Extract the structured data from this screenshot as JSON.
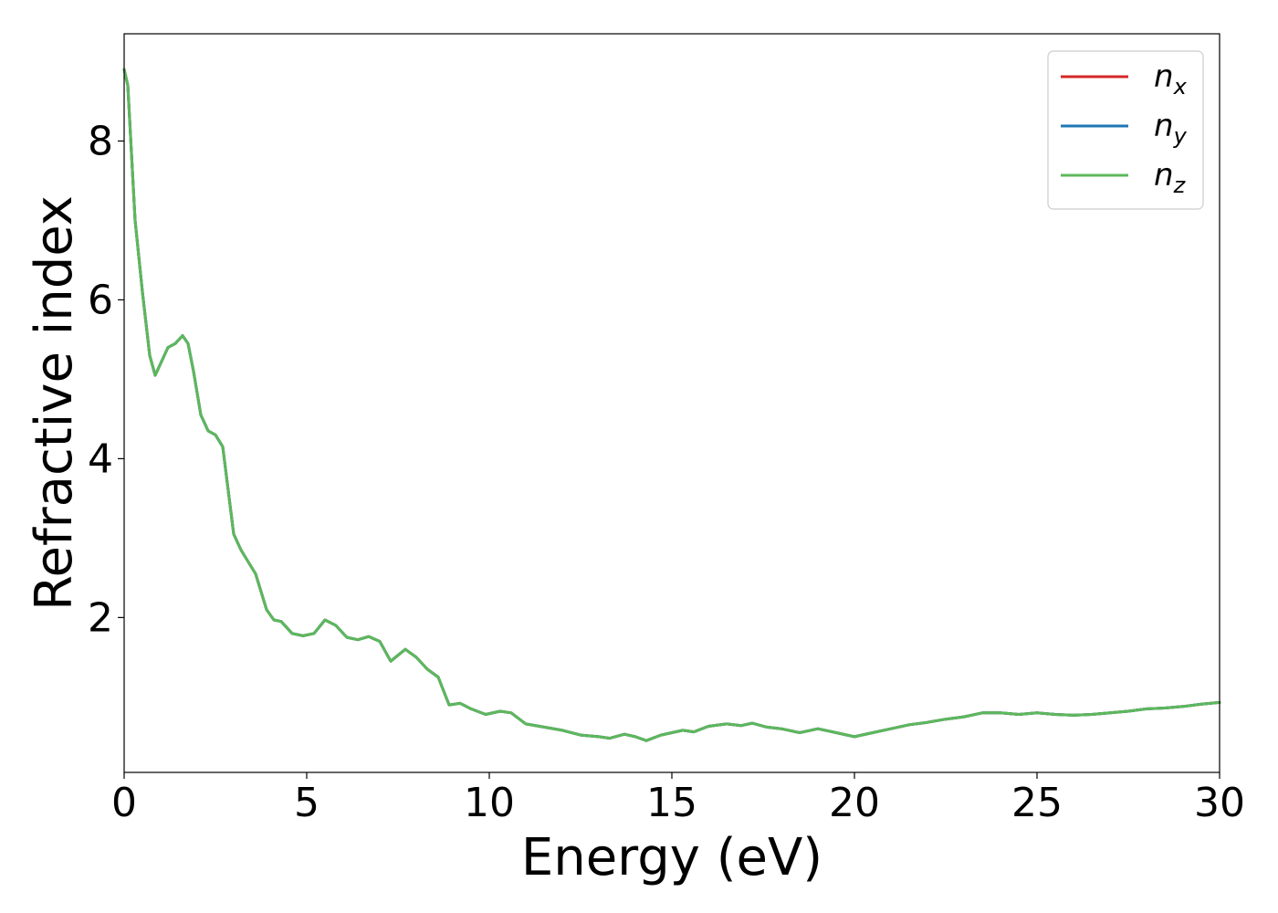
{
  "chart_data": {
    "type": "line",
    "title": "",
    "xlabel": "Energy (eV)",
    "ylabel": "Refractive index",
    "xlim": [
      0,
      30
    ],
    "ylim": [
      0.05,
      9.35
    ],
    "xticks": [
      0,
      5,
      10,
      15,
      20,
      25,
      30
    ],
    "yticks": [
      2,
      4,
      6,
      8
    ],
    "grid": false,
    "legend_position": "top-right",
    "series": [
      {
        "name": "n_x",
        "legend_base": "n",
        "legend_sub": "x",
        "color": "#d62728",
        "x": [
          0,
          0.1,
          0.3,
          0.5,
          0.7,
          0.85,
          1.0,
          1.2,
          1.4,
          1.6,
          1.75,
          1.9,
          2.1,
          2.3,
          2.5,
          2.7,
          2.85,
          3.0,
          3.2,
          3.4,
          3.6,
          3.9,
          4.1,
          4.3,
          4.6,
          4.9,
          5.2,
          5.5,
          5.8,
          6.1,
          6.4,
          6.7,
          7.0,
          7.3,
          7.7,
          8.0,
          8.3,
          8.6,
          8.9,
          9.2,
          9.5,
          9.9,
          10.3,
          10.6,
          11.0,
          11.5,
          12.0,
          12.5,
          13.0,
          13.3,
          13.7,
          14.0,
          14.3,
          14.7,
          15.0,
          15.3,
          15.6,
          16.0,
          16.5,
          16.9,
          17.2,
          17.6,
          18.0,
          18.5,
          19.0,
          19.5,
          20.0,
          20.5,
          21.0,
          21.5,
          22.0,
          22.5,
          23.0,
          23.5,
          24.0,
          24.5,
          25.0,
          25.5,
          26.0,
          26.5,
          27.0,
          27.5,
          28.0,
          28.5,
          29.0,
          29.5,
          30.0
        ],
        "values": [
          8.9,
          8.7,
          7.0,
          6.1,
          5.3,
          5.05,
          5.2,
          5.4,
          5.45,
          5.55,
          5.45,
          5.1,
          4.55,
          4.35,
          4.3,
          4.15,
          3.6,
          3.05,
          2.85,
          2.7,
          2.55,
          2.1,
          1.97,
          1.95,
          1.8,
          1.77,
          1.8,
          1.97,
          1.9,
          1.75,
          1.72,
          1.76,
          1.7,
          1.45,
          1.6,
          1.5,
          1.35,
          1.25,
          0.9,
          0.92,
          0.85,
          0.78,
          0.82,
          0.8,
          0.66,
          0.62,
          0.58,
          0.52,
          0.5,
          0.48,
          0.53,
          0.5,
          0.45,
          0.52,
          0.55,
          0.58,
          0.56,
          0.63,
          0.66,
          0.64,
          0.67,
          0.62,
          0.6,
          0.55,
          0.6,
          0.55,
          0.5,
          0.55,
          0.6,
          0.65,
          0.68,
          0.72,
          0.75,
          0.8,
          0.8,
          0.78,
          0.8,
          0.78,
          0.77,
          0.78,
          0.8,
          0.82,
          0.85,
          0.86,
          0.88,
          0.91,
          0.93
        ]
      },
      {
        "name": "n_y",
        "legend_base": "n",
        "legend_sub": "y",
        "color": "#1f77b4",
        "x": [
          0,
          0.1,
          0.3,
          0.5,
          0.7,
          0.85,
          1.0,
          1.2,
          1.4,
          1.6,
          1.75,
          1.9,
          2.1,
          2.3,
          2.5,
          2.7,
          2.85,
          3.0,
          3.2,
          3.4,
          3.6,
          3.9,
          4.1,
          4.3,
          4.6,
          4.9,
          5.2,
          5.5,
          5.8,
          6.1,
          6.4,
          6.7,
          7.0,
          7.3,
          7.7,
          8.0,
          8.3,
          8.6,
          8.9,
          9.2,
          9.5,
          9.9,
          10.3,
          10.6,
          11.0,
          11.5,
          12.0,
          12.5,
          13.0,
          13.3,
          13.7,
          14.0,
          14.3,
          14.7,
          15.0,
          15.3,
          15.6,
          16.0,
          16.5,
          16.9,
          17.2,
          17.6,
          18.0,
          18.5,
          19.0,
          19.5,
          20.0,
          20.5,
          21.0,
          21.5,
          22.0,
          22.5,
          23.0,
          23.5,
          24.0,
          24.5,
          25.0,
          25.5,
          26.0,
          26.5,
          27.0,
          27.5,
          28.0,
          28.5,
          29.0,
          29.5,
          30.0
        ],
        "values": [
          8.9,
          8.7,
          7.0,
          6.1,
          5.3,
          5.05,
          5.2,
          5.4,
          5.45,
          5.55,
          5.45,
          5.1,
          4.55,
          4.35,
          4.3,
          4.15,
          3.6,
          3.05,
          2.85,
          2.7,
          2.55,
          2.1,
          1.97,
          1.95,
          1.8,
          1.77,
          1.8,
          1.97,
          1.9,
          1.75,
          1.72,
          1.76,
          1.7,
          1.45,
          1.6,
          1.5,
          1.35,
          1.25,
          0.9,
          0.92,
          0.85,
          0.78,
          0.82,
          0.8,
          0.66,
          0.62,
          0.58,
          0.52,
          0.5,
          0.48,
          0.53,
          0.5,
          0.45,
          0.52,
          0.55,
          0.58,
          0.56,
          0.63,
          0.66,
          0.64,
          0.67,
          0.62,
          0.6,
          0.55,
          0.6,
          0.55,
          0.5,
          0.55,
          0.6,
          0.65,
          0.68,
          0.72,
          0.75,
          0.8,
          0.8,
          0.78,
          0.8,
          0.78,
          0.77,
          0.78,
          0.8,
          0.82,
          0.85,
          0.86,
          0.88,
          0.91,
          0.93
        ]
      },
      {
        "name": "n_z",
        "legend_base": "n",
        "legend_sub": "z",
        "color": "#5cb85c",
        "x": [
          0,
          0.1,
          0.3,
          0.5,
          0.7,
          0.85,
          1.0,
          1.2,
          1.4,
          1.6,
          1.75,
          1.9,
          2.1,
          2.3,
          2.5,
          2.7,
          2.85,
          3.0,
          3.2,
          3.4,
          3.6,
          3.9,
          4.1,
          4.3,
          4.6,
          4.9,
          5.2,
          5.5,
          5.8,
          6.1,
          6.4,
          6.7,
          7.0,
          7.3,
          7.7,
          8.0,
          8.3,
          8.6,
          8.9,
          9.2,
          9.5,
          9.9,
          10.3,
          10.6,
          11.0,
          11.5,
          12.0,
          12.5,
          13.0,
          13.3,
          13.7,
          14.0,
          14.3,
          14.7,
          15.0,
          15.3,
          15.6,
          16.0,
          16.5,
          16.9,
          17.2,
          17.6,
          18.0,
          18.5,
          19.0,
          19.5,
          20.0,
          20.5,
          21.0,
          21.5,
          22.0,
          22.5,
          23.0,
          23.5,
          24.0,
          24.5,
          25.0,
          25.5,
          26.0,
          26.5,
          27.0,
          27.5,
          28.0,
          28.5,
          29.0,
          29.5,
          30.0
        ],
        "values": [
          8.9,
          8.7,
          7.0,
          6.1,
          5.3,
          5.05,
          5.2,
          5.4,
          5.45,
          5.55,
          5.45,
          5.1,
          4.55,
          4.35,
          4.3,
          4.15,
          3.6,
          3.05,
          2.85,
          2.7,
          2.55,
          2.1,
          1.97,
          1.95,
          1.8,
          1.77,
          1.8,
          1.97,
          1.9,
          1.75,
          1.72,
          1.76,
          1.7,
          1.45,
          1.6,
          1.5,
          1.35,
          1.25,
          0.9,
          0.92,
          0.85,
          0.78,
          0.82,
          0.8,
          0.66,
          0.62,
          0.58,
          0.52,
          0.5,
          0.48,
          0.53,
          0.5,
          0.45,
          0.52,
          0.55,
          0.58,
          0.56,
          0.63,
          0.66,
          0.64,
          0.67,
          0.62,
          0.6,
          0.55,
          0.6,
          0.55,
          0.5,
          0.55,
          0.6,
          0.65,
          0.68,
          0.72,
          0.75,
          0.8,
          0.8,
          0.78,
          0.8,
          0.78,
          0.77,
          0.78,
          0.8,
          0.82,
          0.85,
          0.86,
          0.88,
          0.91,
          0.93
        ]
      }
    ]
  }
}
